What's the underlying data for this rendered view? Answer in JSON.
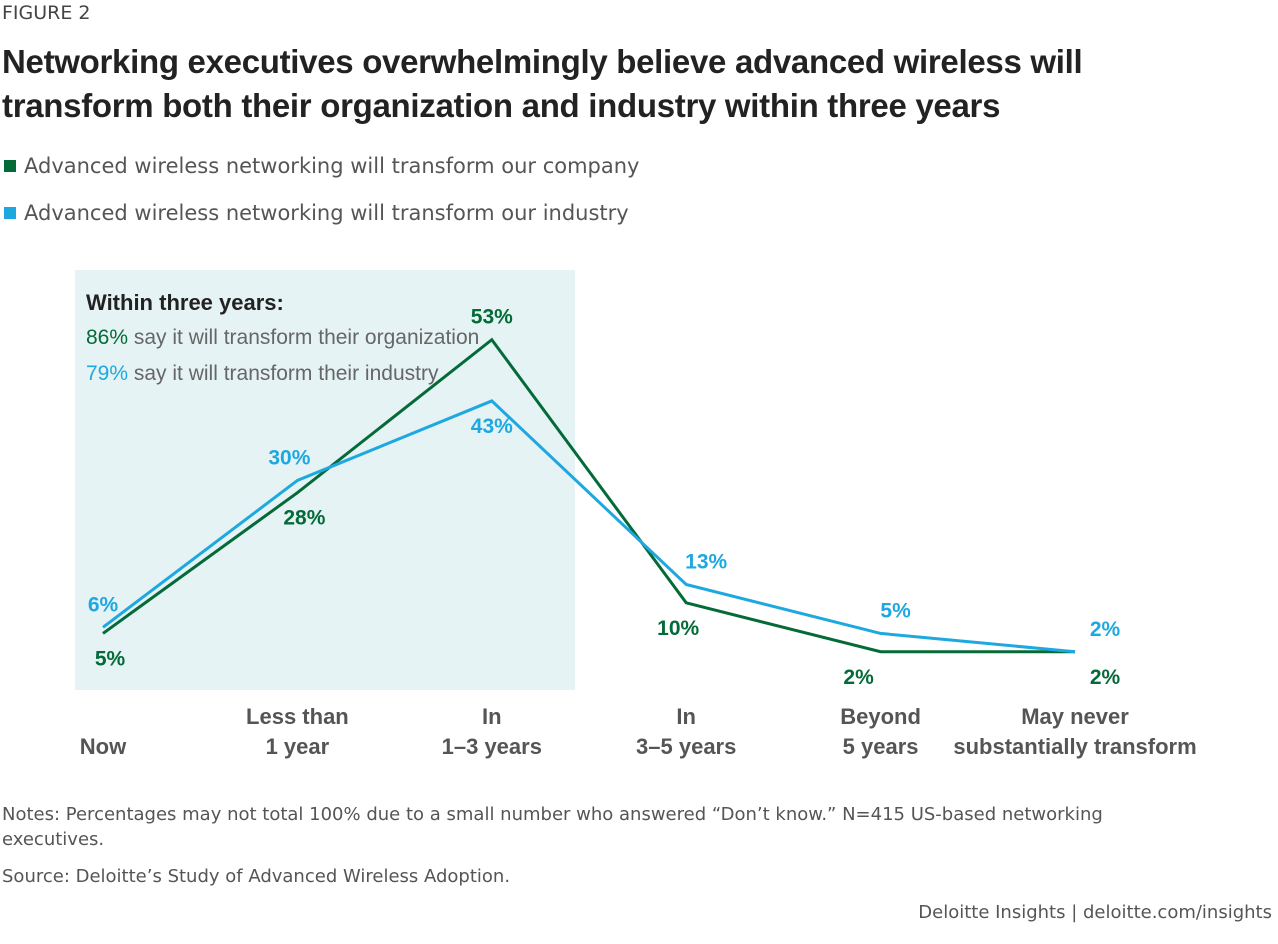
{
  "figure_label": "FIGURE 2",
  "title": "Networking executives overwhelmingly believe advanced wireless will transform both their organization and industry within three years",
  "colors": {
    "company": "#046a38",
    "industry": "#1fa8e0",
    "box": "#e5f3f5"
  },
  "callout": {
    "heading": "Within three years:",
    "line1_value": "86%",
    "line1_text": " say it will transform their organization",
    "line2_value": "79%",
    "line2_text": " say it will transform their industry"
  },
  "chart_data": {
    "type": "line",
    "categories": [
      [
        "",
        "Now"
      ],
      [
        "Less than",
        "1 year"
      ],
      [
        "In",
        "1–3 years"
      ],
      [
        "In",
        "3–5 years"
      ],
      [
        "Beyond",
        "5 years"
      ],
      [
        "May never",
        "substantially transform"
      ]
    ],
    "series": [
      {
        "name": "Advanced wireless networking will transform our company",
        "values": [
          5,
          28,
          53,
          10,
          2,
          2
        ],
        "labels": [
          "5%",
          "28%",
          "53%",
          "10%",
          "2%",
          "2%"
        ]
      },
      {
        "name": "Advanced wireless networking will transform our industry",
        "values": [
          6,
          30,
          43,
          13,
          5,
          2
        ],
        "labels": [
          "6%",
          "30%",
          "43%",
          "13%",
          "5%",
          "2%"
        ]
      }
    ],
    "highlight_region": [
      "Now",
      "In 1–3 years"
    ],
    "grid": false,
    "legend": "top-left"
  },
  "notes": "Notes: Percentages may not total 100% due to a small number who answered “Don’t know.” N=415 US-based networking executives.",
  "source": "Source: Deloitte’s Study of Advanced Wireless Adoption.",
  "footer": "Deloitte Insights | deloitte.com/insights"
}
